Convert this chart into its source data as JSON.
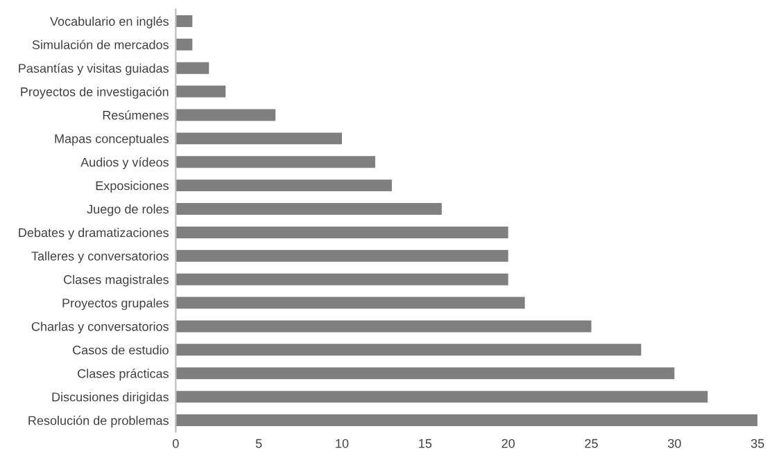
{
  "chart_data": {
    "type": "bar",
    "orientation": "horizontal",
    "categories": [
      "Vocabulario en inglés",
      "Simulación de mercados",
      "Pasantías y visitas guiadas",
      "Proyectos de investigación",
      "Resúmenes",
      "Mapas conceptuales",
      "Audios y vídeos",
      "Exposiciones",
      "Juego de roles",
      "Debates y dramatizaciones",
      "Talleres y conversatorios",
      "Clases magistrales",
      "Proyectos grupales",
      "Charlas y conversatorios",
      "Casos de estudio",
      "Clases prácticas",
      "Discusiones dirigidas",
      "Resolución de problemas"
    ],
    "values": [
      1,
      1,
      2,
      3,
      6,
      10,
      12,
      13,
      16,
      20,
      20,
      20,
      21,
      25,
      28,
      30,
      32,
      35
    ],
    "color": "#7f7f7f",
    "xlim": [
      0,
      35
    ],
    "xticks": [
      0,
      5,
      10,
      15,
      20,
      25,
      30,
      35
    ],
    "grid": false
  }
}
